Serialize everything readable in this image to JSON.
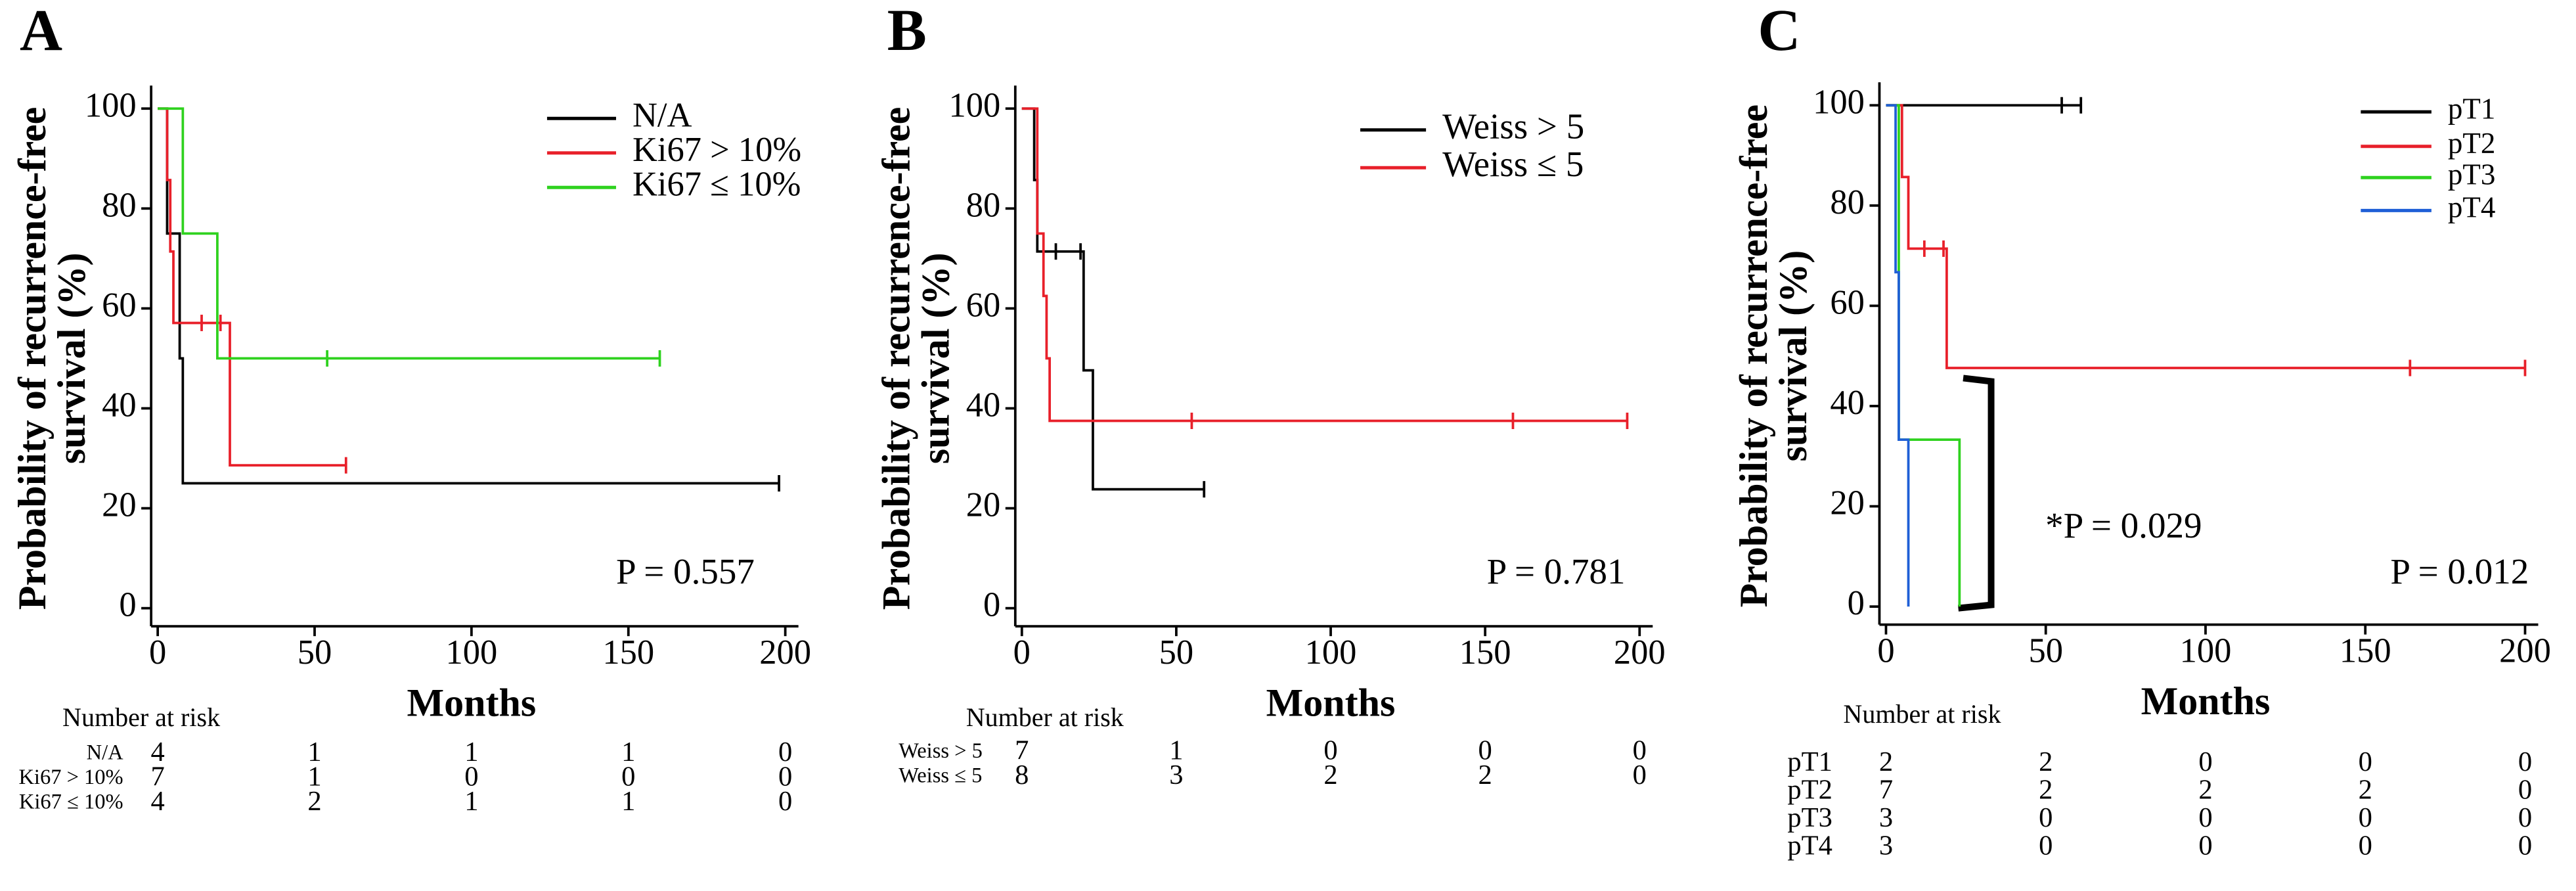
{
  "chart_data": [
    {
      "type": "step",
      "panel_label": "A",
      "ylabel": [
        "Probability of recurrence-free",
        "survival (%)"
      ],
      "xlabel": "Months",
      "xlim": [
        0,
        200
      ],
      "ylim": [
        0,
        100
      ],
      "xticks": [
        0,
        50,
        100,
        150,
        200
      ],
      "yticks": [
        0,
        20,
        40,
        60,
        80,
        100
      ],
      "p_value": "P = 0.557",
      "risk_label": "Number at risk",
      "series": [
        {
          "name": "N/A",
          "color": "#000000",
          "x": [
            0,
            3,
            7,
            8,
            198
          ],
          "values": [
            100,
            75,
            50,
            25,
            25
          ],
          "censor_x": [
            198
          ],
          "censor_y": [
            25
          ],
          "at_risk": [
            4,
            1,
            1,
            1,
            0
          ]
        },
        {
          "name": "Ki67 > 10%",
          "color": "#e8202a",
          "x": [
            0,
            3,
            4,
            5,
            23,
            60
          ],
          "values": [
            100,
            85.7,
            71.4,
            57.1,
            28.6,
            28.6
          ],
          "censor_x": [
            14,
            20,
            60
          ],
          "censor_y": [
            57.1,
            57.1,
            28.6
          ],
          "at_risk": [
            7,
            1,
            0,
            0,
            0
          ]
        },
        {
          "name": "Ki67 ≤ 10%",
          "color": "#2fd21f",
          "x": [
            0,
            8,
            19,
            160
          ],
          "values": [
            100,
            75,
            50,
            50
          ],
          "censor_x": [
            54,
            160
          ],
          "censor_y": [
            50,
            50
          ],
          "at_risk": [
            4,
            2,
            1,
            1,
            0
          ]
        }
      ]
    },
    {
      "type": "step",
      "panel_label": "B",
      "ylabel": [
        "Probability of recurrence-free",
        "survival (%)"
      ],
      "xlabel": "Months",
      "xlim": [
        0,
        200
      ],
      "ylim": [
        0,
        100
      ],
      "xticks": [
        0,
        50,
        100,
        150,
        200
      ],
      "yticks": [
        0,
        20,
        40,
        60,
        80,
        100
      ],
      "p_value": "P = 0.781",
      "risk_label": "Number at risk",
      "series": [
        {
          "name": "Weiss > 5",
          "color": "#000000",
          "x": [
            0,
            4,
            5,
            20,
            23,
            59
          ],
          "values": [
            100,
            85.7,
            71.4,
            47.6,
            23.8,
            23.8
          ],
          "censor_x": [
            11,
            19,
            59
          ],
          "censor_y": [
            71.4,
            71.4,
            23.8
          ],
          "at_risk": [
            7,
            1,
            0,
            0,
            0
          ]
        },
        {
          "name": "Weiss ≤ 5",
          "color": "#e8202a",
          "x": [
            0,
            5,
            7,
            8,
            9,
            196
          ],
          "values": [
            100,
            75,
            62.5,
            50,
            37.5,
            37.5
          ],
          "censor_x": [
            55,
            159,
            196
          ],
          "censor_y": [
            37.5,
            37.5,
            37.5
          ],
          "at_risk": [
            8,
            3,
            2,
            2,
            0
          ]
        }
      ]
    },
    {
      "type": "step",
      "panel_label": "C",
      "ylabel": [
        "Probability of recurrence-free",
        "survival (%)"
      ],
      "xlabel": "Months",
      "xlim": [
        0,
        200
      ],
      "ylim": [
        0,
        100
      ],
      "xticks": [
        0,
        50,
        100,
        150,
        200
      ],
      "yticks": [
        0,
        20,
        40,
        60,
        80,
        100
      ],
      "p_value": "P = 0.012",
      "annotation": "*P = 0.029",
      "risk_label": "Number at risk",
      "series": [
        {
          "name": "pT1",
          "color": "#000000",
          "x": [
            0,
            61
          ],
          "values": [
            100,
            100
          ],
          "censor_x": [
            55,
            61
          ],
          "censor_y": [
            100,
            100
          ],
          "at_risk": [
            2,
            2,
            0,
            0,
            0
          ]
        },
        {
          "name": "pT2",
          "color": "#e8202a",
          "x": [
            0,
            5,
            7,
            19,
            200
          ],
          "values": [
            100,
            85.7,
            71.4,
            47.6,
            47.6
          ],
          "censor_x": [
            12,
            18,
            164,
            200
          ],
          "censor_y": [
            71.4,
            71.4,
            47.6,
            47.6
          ],
          "at_risk": [
            7,
            2,
            2,
            2,
            0
          ]
        },
        {
          "name": "pT3",
          "color": "#2fd21f",
          "x": [
            0,
            4,
            23
          ],
          "values": [
            100,
            33.3,
            0
          ],
          "censor_x": [],
          "censor_y": [],
          "at_risk": [
            3,
            0,
            0,
            0,
            0
          ]
        },
        {
          "name": "pT4",
          "color": "#1f5fd6",
          "x": [
            0,
            3,
            4,
            7
          ],
          "values": [
            100,
            66.7,
            33.3,
            0
          ],
          "censor_x": [],
          "censor_y": [],
          "at_risk": [
            3,
            0,
            0,
            0,
            0
          ]
        }
      ]
    }
  ]
}
